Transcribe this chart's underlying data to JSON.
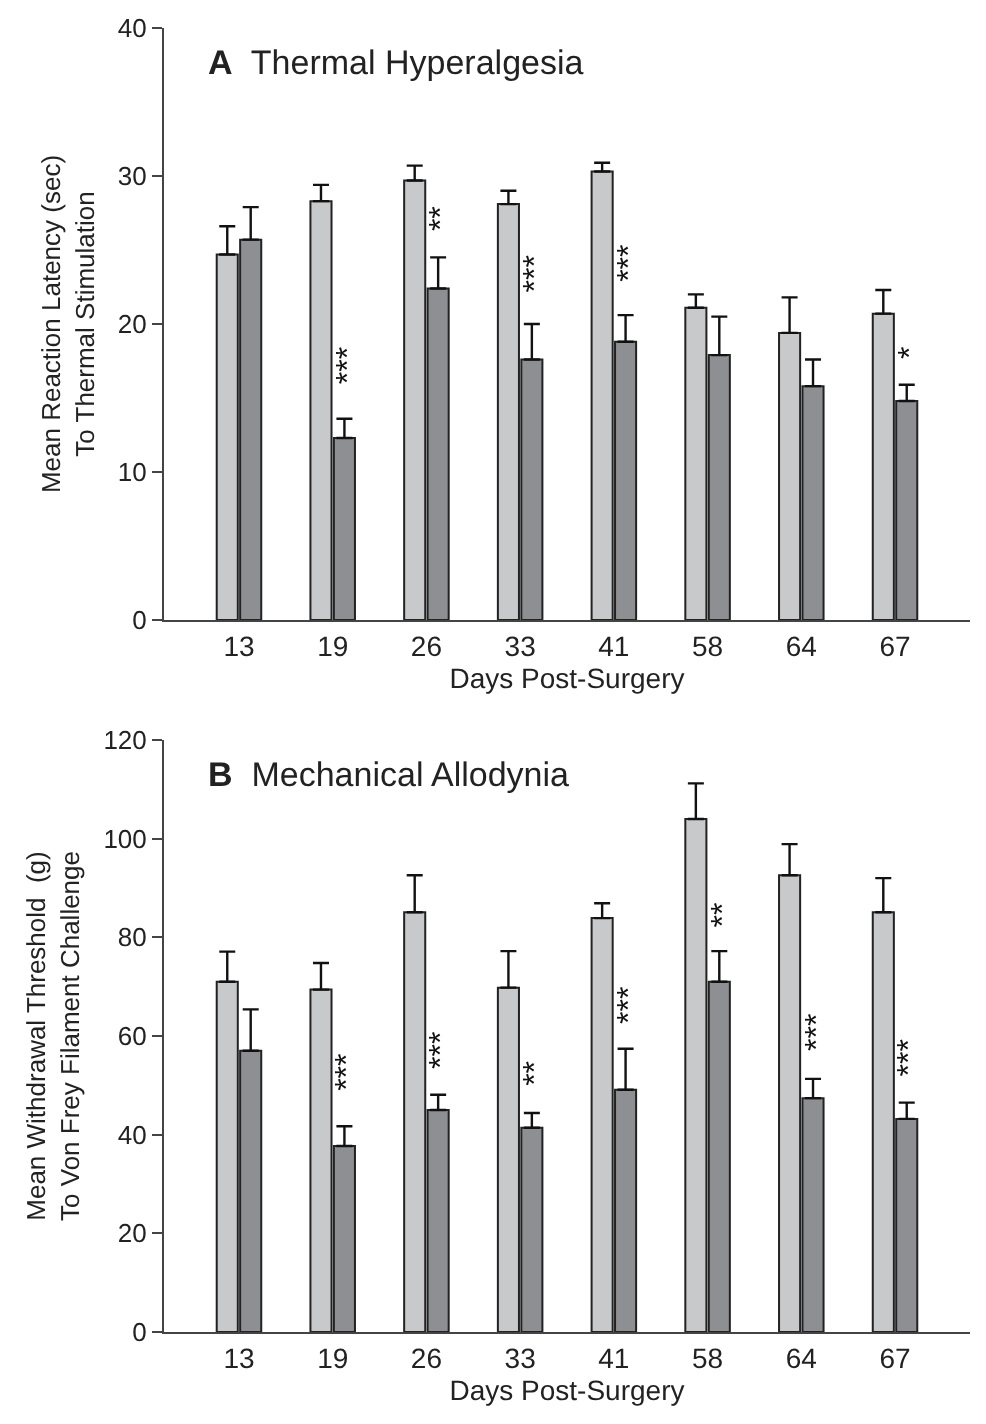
{
  "chart_data": [
    {
      "type": "bar",
      "title": "A  Thermal Hyperalgesia",
      "xlabel": "Days Post-Surgery",
      "ylabel": "Mean Reaction Latency (sec)\nTo Thermal Stimulation",
      "categories": [
        "13",
        "19",
        "26",
        "33",
        "41",
        "58",
        "64",
        "67"
      ],
      "series": [
        {
          "color": "#c8c9cb",
          "values": [
            24.7,
            28.3,
            29.7,
            28.1,
            30.3,
            21.1,
            19.4,
            20.7
          ],
          "errors": [
            [
              24.7,
              26.6
            ],
            [
              28.3,
              29.4
            ],
            [
              29.7,
              30.7
            ],
            [
              28.1,
              29.0
            ],
            [
              30.3,
              30.9
            ],
            [
              21.1,
              22.0
            ],
            [
              19.4,
              21.8
            ],
            [
              20.7,
              22.3
            ]
          ]
        },
        {
          "color": "#8e8f93",
          "values": [
            25.7,
            12.3,
            22.4,
            17.6,
            18.8,
            17.9,
            15.8,
            14.8
          ],
          "errors": [
            [
              25.7,
              27.9
            ],
            [
              12.3,
              13.6
            ],
            [
              22.4,
              24.5
            ],
            [
              17.6,
              20.0
            ],
            [
              18.8,
              20.6
            ],
            [
              17.9,
              20.5
            ],
            [
              15.8,
              17.6
            ],
            [
              14.8,
              15.9
            ]
          ]
        }
      ],
      "annotations": [
        {
          "text": "***",
          "x": "19",
          "y": 15.6
        },
        {
          "text": "**",
          "x": "26",
          "y": 26.0
        },
        {
          "text": "***",
          "x": "33",
          "y": 21.9
        },
        {
          "text": "***",
          "x": "41",
          "y": 22.6
        },
        {
          "text": "*",
          "x": "67",
          "y": 17.4
        }
      ],
      "ylim": [
        0,
        40
      ],
      "yticks": [
        0,
        10,
        20,
        30,
        40
      ],
      "grid": false
    },
    {
      "type": "bar",
      "title": "B  Mechanical Allodynia",
      "xlabel": "Days Post-Surgery",
      "ylabel": "Mean Withdrawal Threshold  (g)\nTo Von Frey Filament Challenge",
      "categories": [
        "13",
        "19",
        "26",
        "33",
        "41",
        "58",
        "64",
        "67"
      ],
      "series": [
        {
          "color": "#c8c9cb",
          "values": [
            71,
            69.4,
            85.1,
            69.8,
            83.9,
            104,
            92.6,
            85.1
          ],
          "errors": [
            [
              71,
              77.1
            ],
            [
              69.4,
              74.8
            ],
            [
              85.1,
              92.6
            ],
            [
              69.8,
              77.2
            ],
            [
              83.9,
              86.9
            ],
            [
              104,
              111.2
            ],
            [
              92.6,
              98.9
            ],
            [
              85.1,
              92.0
            ]
          ]
        },
        {
          "color": "#8e8f93",
          "values": [
            57.0,
            37.7,
            45.0,
            41.4,
            49.1,
            71.0,
            47.4,
            43.2
          ],
          "errors": [
            [
              57.0,
              65.4
            ],
            [
              37.7,
              41.7
            ],
            [
              45.0,
              48.1
            ],
            [
              41.4,
              44.4
            ],
            [
              49.1,
              57.4
            ],
            [
              71.0,
              77.2
            ],
            [
              47.4,
              51.3
            ],
            [
              43.2,
              46.5
            ]
          ]
        }
      ],
      "annotations": [
        {
          "text": "***",
          "x": "19",
          "y": 47.9
        },
        {
          "text": "***",
          "x": "26",
          "y": 52.7
        },
        {
          "text": "**",
          "x": "33",
          "y": 49
        },
        {
          "text": "***",
          "x": "41",
          "y": 61.7
        },
        {
          "text": "**",
          "x": "58",
          "y": 81
        },
        {
          "text": "***",
          "x": "64",
          "y": 56.1
        },
        {
          "text": "***",
          "x": "67",
          "y": 50.9
        }
      ],
      "ylim": [
        0,
        120
      ],
      "yticks": [
        0,
        20,
        40,
        60,
        80,
        100,
        120
      ],
      "grid": false
    }
  ]
}
